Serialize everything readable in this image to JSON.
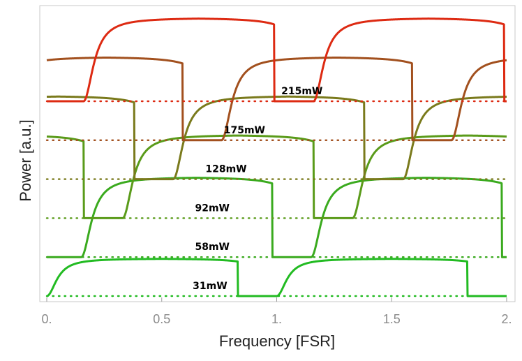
{
  "chart_data": {
    "type": "line",
    "title": "",
    "xlabel": "Frequency [FSR]",
    "ylabel": "Power [a.u.]",
    "xlim": [
      0,
      2
    ],
    "x_ticks": [
      {
        "value": 0,
        "label": "0."
      },
      {
        "value": 0.5,
        "label": "0.5"
      },
      {
        "value": 1,
        "label": "1."
      },
      {
        "value": 1.5,
        "label": "1.5"
      },
      {
        "value": 2,
        "label": "2."
      }
    ],
    "y_ticks": "none",
    "grid": false,
    "baseline_style": "dotted",
    "series": [
      {
        "name": "31mW",
        "label": "31mW",
        "color": "#22bb22",
        "baseline_level": 0,
        "offset": 0.0,
        "peak_x": 0.195,
        "peak_height": 0.45,
        "drop_x": 0.21,
        "label_x": 0.71
      },
      {
        "name": "58mW",
        "label": "58mW",
        "color": "#3aaa1e",
        "baseline_level": 1,
        "offset": 0.15,
        "peak_x": 0.225,
        "peak_height": 0.96,
        "drop_x": 0.24,
        "label_x": 0.72
      },
      {
        "name": "92mW",
        "label": "92mW",
        "color": "#5a9b1a",
        "baseline_level": 2,
        "offset": 0.33,
        "peak_x": 0.285,
        "peak_height": 1.0,
        "drop_x": 0.3,
        "label_x": 0.72
      },
      {
        "name": "128mW",
        "label": "128mW",
        "color": "#7a7a1c",
        "baseline_level": 3,
        "offset": 0.55,
        "peak_x": 0.36,
        "peak_height": 1.0,
        "drop_x": 0.375,
        "label_x": 0.78
      },
      {
        "name": "175mW",
        "label": "175mW",
        "color": "#a2501e",
        "baseline_level": 4,
        "offset": 0.76,
        "peak_x": 0.545,
        "peak_height": 1.0,
        "drop_x": 0.56,
        "label_x": 0.86
      },
      {
        "name": "215mW",
        "label": "215mW",
        "color": "#dd2a12",
        "baseline_level": 5,
        "offset": 1.16,
        "peak_x": 0.965,
        "peak_height": 1.0,
        "drop_x": 0.98,
        "label_x": 1.11
      }
    ]
  }
}
